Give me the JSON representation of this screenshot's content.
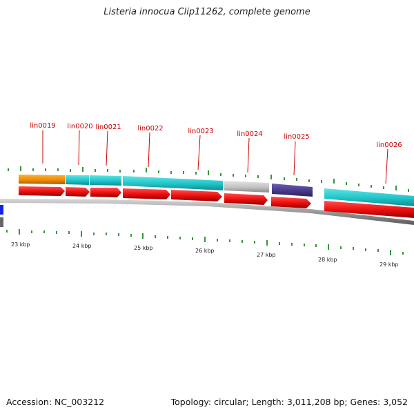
{
  "title": "Listeria innocua Clip11262, complete genome",
  "footer": {
    "accession": "Accession: NC_003212",
    "topology": "Topology: circular; Length: 3,011,208 bp; Genes: 3,052"
  },
  "genes": [
    {
      "name": "lin0019"
    },
    {
      "name": "lin0020"
    },
    {
      "name": "lin0021"
    },
    {
      "name": "lin0022"
    },
    {
      "name": "lin0023"
    },
    {
      "name": "lin0024"
    },
    {
      "name": "lin0025"
    },
    {
      "name": "lin0026"
    }
  ],
  "scale_labels": [
    "23 kbp",
    "24 kbp",
    "25 kbp",
    "26 kbp",
    "27 kbp",
    "28 kbp",
    "29 kbp"
  ],
  "colors": {
    "gene_label": "#cc0000",
    "orange_feature": "#f4900c",
    "cyan_feature": "#22c8cc",
    "grey_feature": "#c4c4c4",
    "purple_feature": "#4a3f8c",
    "red_arrow": "#ee1111",
    "backbone": "#888888",
    "tick": "#228822"
  }
}
